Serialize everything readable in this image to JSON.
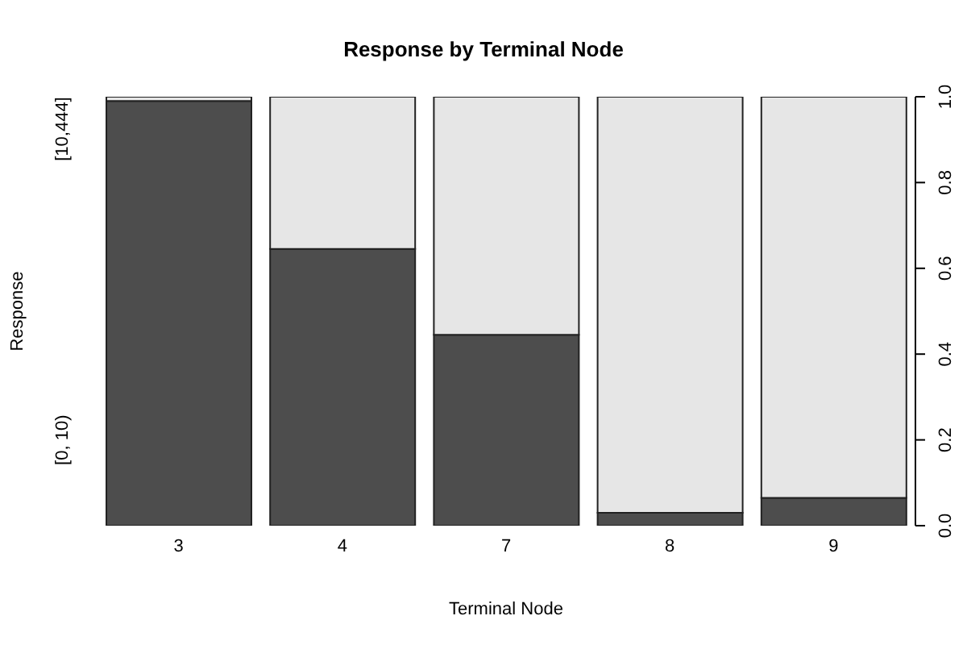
{
  "chart_data": {
    "type": "bar",
    "title": "Response by Terminal Node",
    "xlabel": "Terminal Node",
    "ylabel": "Response",
    "categories": [
      "3",
      "4",
      "7",
      "8",
      "9"
    ],
    "stacked": true,
    "series": [
      {
        "name": "[0, 10)",
        "color": "#4d4d4d",
        "values": [
          0.99,
          0.645,
          0.445,
          0.03,
          0.065
        ]
      },
      {
        "name": "[10,444]",
        "color": "#e6e6e6",
        "values": [
          0.01,
          0.355,
          0.555,
          0.97,
          0.935
        ]
      }
    ],
    "ylim": [
      0,
      1
    ],
    "yticks": [
      {
        "value": 0,
        "label": "0.0"
      },
      0.2,
      0.4,
      0.6,
      0.8,
      {
        "value": 1,
        "label": "1.0"
      }
    ],
    "grid": false,
    "legend": false
  }
}
